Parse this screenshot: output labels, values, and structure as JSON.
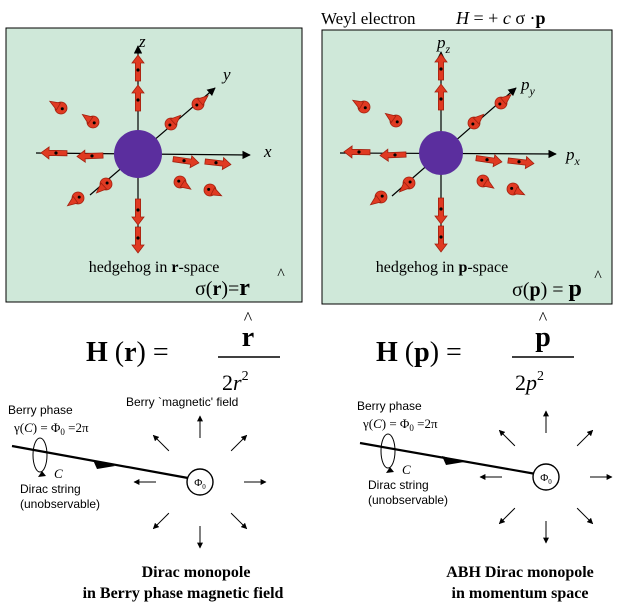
{
  "top_header": {
    "label": "Weyl electron",
    "hamiltonian": [
      "H",
      " = + ",
      "c",
      " σ ·",
      "p"
    ]
  },
  "left_panel": {
    "axes": {
      "x": "x",
      "y": "y",
      "z": "z"
    },
    "caption": [
      "hedgehog in ",
      "r",
      "-space"
    ],
    "formula": [
      "σ(",
      "r",
      ")=",
      "r",
      "^"
    ]
  },
  "right_panel": {
    "axes": {
      "x": "p",
      "x_sub": "x",
      "y": "p",
      "y_sub": "y",
      "z": "p",
      "z_sub": "z"
    },
    "caption": [
      "hedgehog in ",
      "p",
      "-space"
    ],
    "formula": [
      "σ(",
      "p",
      ") = ",
      "p",
      "^"
    ]
  },
  "left_field": {
    "lhs": [
      "H",
      " (",
      "r",
      ") ="
    ],
    "numerator": "r",
    "hat": "^",
    "denominator": [
      "2",
      "r",
      "2"
    ]
  },
  "right_field": {
    "lhs": [
      "H",
      " (",
      "p",
      ") ="
    ],
    "numerator": "p",
    "hat": "^",
    "denominator": [
      "2",
      "p",
      "2"
    ]
  },
  "left_monopole": {
    "berry_phase": "Berry phase",
    "gamma": [
      "γ(",
      "C",
      ") = Φ",
      "0",
      " =2π"
    ],
    "loop_label": "C",
    "string_label": [
      "Dirac string",
      "(unobservable)"
    ],
    "field_label": "Berry `magnetic' field",
    "flux": [
      "Φ",
      "0"
    ],
    "title": [
      "Dirac monopole",
      "in Berry phase magnetic field"
    ]
  },
  "right_monopole": {
    "berry_phase": "Berry phase",
    "gamma": [
      "γ(",
      "C",
      ") = Φ",
      "0",
      " =2π"
    ],
    "loop_label": "C",
    "string_label": [
      "Dirac string",
      "(unobservable)"
    ],
    "flux": [
      "Φ",
      "0"
    ],
    "title": [
      "ABH Dirac monopole",
      "in momentum space"
    ]
  },
  "colors": {
    "panel_bg": "#cfe8d9",
    "monopole": "#5b2e9e",
    "spin": "#e03a22",
    "spin_dark": "#a3200f"
  }
}
